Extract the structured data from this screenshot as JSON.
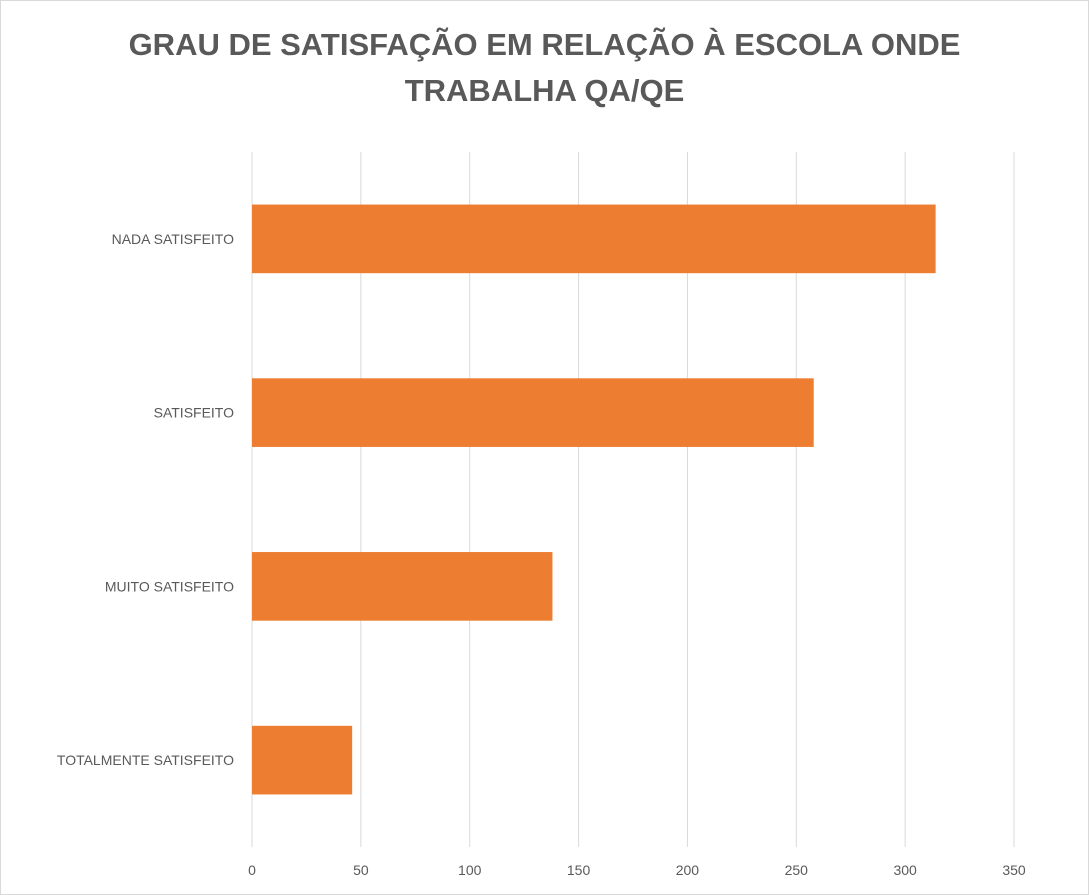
{
  "chart_data": {
    "type": "bar",
    "orientation": "horizontal",
    "title": "GRAU DE SATISFAÇÃO EM RELAÇÃO À ESCOLA ONDE TRABALHA QA/QE",
    "categories": [
      "NADA SATISFEITO",
      "SATISFEITO",
      "MUITO SATISFEITO",
      "TOTALMENTE SATISFEITO"
    ],
    "values": [
      314,
      258,
      138,
      46
    ],
    "xlabel": "",
    "ylabel": "",
    "xlim": [
      0,
      350
    ],
    "xticks": [
      0,
      50,
      100,
      150,
      200,
      250,
      300,
      350
    ],
    "grid": true,
    "legend": "none",
    "bar_color": "#ED7D31"
  }
}
